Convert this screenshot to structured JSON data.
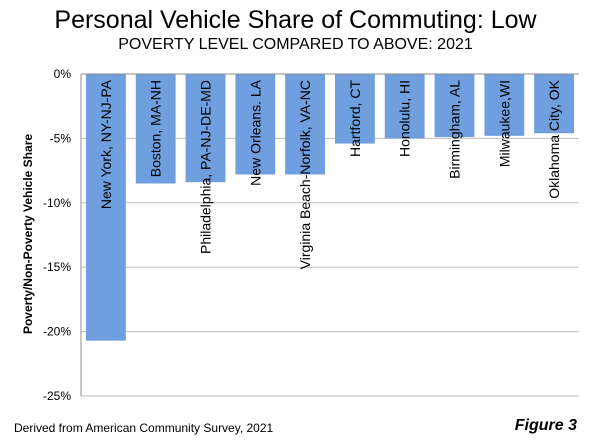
{
  "title": "Personal Vehicle Share of Commuting: Low",
  "subtitle": "POVERTY LEVEL COMPARED TO ABOVE: 2021",
  "source": "Derived from American Community Survey, 2021",
  "figure_label": "Figure 3",
  "colors": {
    "bar": "#6f9fde",
    "grid": "#bfbfbf",
    "axis": "#8c8c8c"
  },
  "chart_data": {
    "type": "bar",
    "ylabel": "Poverty/Non-Poverty Vehicle Share",
    "xlabel": "",
    "ylim": [
      -25,
      0
    ],
    "yticks": [
      0,
      -5,
      -10,
      -15,
      -20,
      -25
    ],
    "ytick_labels": [
      "0%",
      "-5%",
      "-10%",
      "-15%",
      "-20%",
      "-25%"
    ],
    "grid": true,
    "categories": [
      "New York, NY-NJ-PA",
      "Boston, MA-NH",
      "Philadelphia, PA-NJ-DE-MD",
      "New Orleans. LA",
      "Virginia Beach-Norfolk, VA-NC",
      "Hartford, CT",
      "Honolulu, HI",
      "Birmingham, AL",
      "Milwaukee,WI",
      "Oklahoma City, OK"
    ],
    "values": [
      -20.7,
      -8.5,
      -8.4,
      -7.8,
      -7.8,
      -5.4,
      -5.0,
      -4.9,
      -4.8,
      -4.6
    ]
  }
}
